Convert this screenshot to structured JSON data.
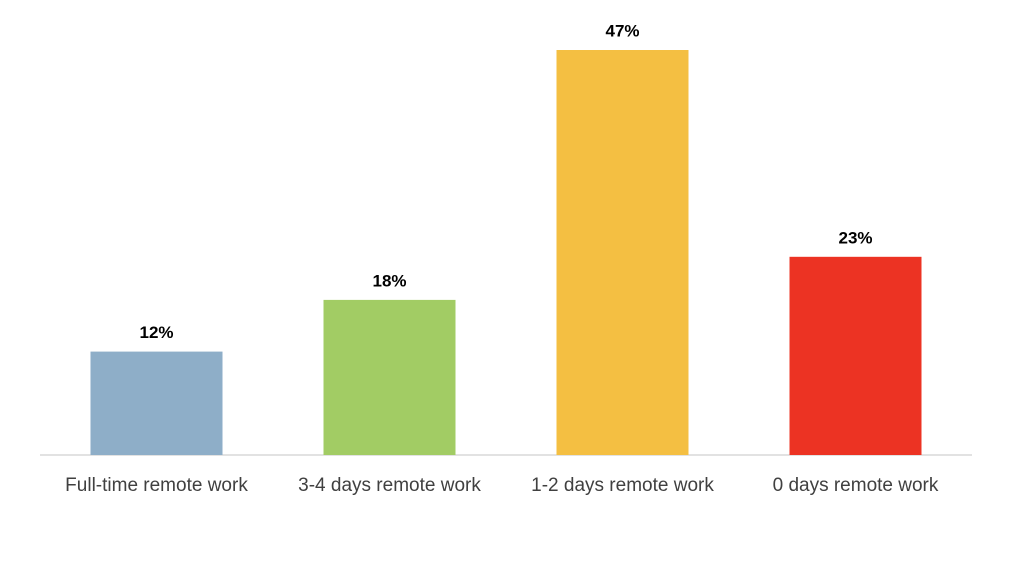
{
  "chart_data": {
    "type": "bar",
    "categories": [
      "Full-time remote work",
      "3-4 days remote work",
      "1-2 days remote work",
      "0 days remote work"
    ],
    "values": [
      12,
      18,
      47,
      23
    ],
    "value_labels": [
      "12%",
      "18%",
      "47%",
      "23%"
    ],
    "colors": [
      "#8eaec8",
      "#a2cc64",
      "#f4bf42",
      "#ec3323"
    ]
  }
}
